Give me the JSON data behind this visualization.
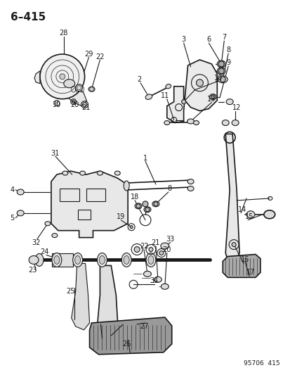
{
  "title": "6–415",
  "footer": "95706  415",
  "bg_color": "#ffffff",
  "line_color": "#1a1a1a",
  "title_fontsize": 11,
  "footer_fontsize": 6.5,
  "label_fontsize": 7,
  "fig_width": 4.14,
  "fig_height": 5.33,
  "dpi": 100
}
